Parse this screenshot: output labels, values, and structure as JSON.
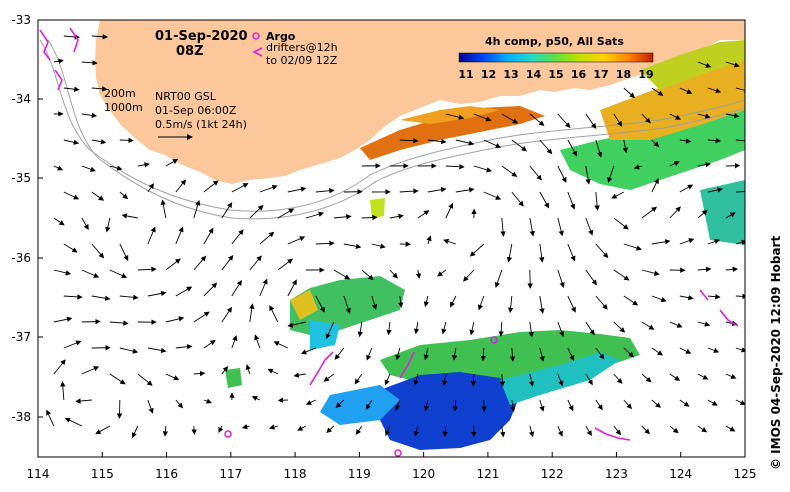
{
  "map": {
    "lon_ticks": [
      "114",
      "115",
      "116",
      "117",
      "118",
      "119",
      "120",
      "121",
      "122",
      "123",
      "124",
      "125"
    ],
    "lat_ticks": [
      "-33",
      "-34",
      "-35",
      "-36",
      "-37",
      "-38"
    ],
    "land_color": "#fcc89b"
  },
  "header": {
    "date": "01-Sep-2020",
    "hour": "08Z"
  },
  "legend": {
    "argo_label": "Argo",
    "drifters_label": "drifters@12h",
    "drifters_to": "to 02/09 12Z",
    "argo_color": "#e020e0"
  },
  "notes": {
    "isobath_1": "200m",
    "isobath_2": "1000m",
    "model": "NRT00 GSL",
    "time": "01-Sep 06:00Z",
    "scale": "0.5m/s (1kt 24h)"
  },
  "colorbar": {
    "title": "4h comp, p50, All Sats",
    "labels": [
      "11",
      "12",
      "13",
      "14",
      "15",
      "16",
      "17",
      "18",
      "19"
    ]
  },
  "credit": "©  IMOS 04-Sep-2020 12:09 Hobart"
}
